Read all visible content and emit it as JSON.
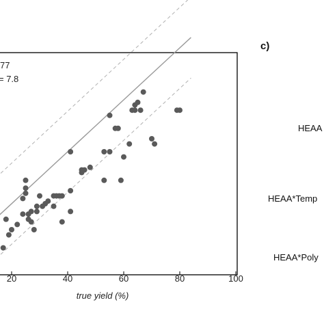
{
  "chart_data": {
    "type": "scatter",
    "xlabel": "true yield (%)",
    "x_ticks": [
      "20",
      "40",
      "60",
      "80",
      "100"
    ],
    "xlim": [
      0,
      100
    ],
    "ylim": [
      0,
      100
    ],
    "stats": [
      "77",
      "= 7.8"
    ],
    "colors": {
      "points": "#5a5a5a",
      "fit": "#9a9a9a",
      "band": "#b0b0b0",
      "frame": "#000000"
    },
    "fit_line": {
      "x": [
        0,
        84
      ],
      "y": [
        0,
        84
      ]
    },
    "band_offset": 15.6,
    "points": [
      {
        "x": 2,
        "y": 6
      },
      {
        "x": 3,
        "y": 14
      },
      {
        "x": 6,
        "y": 22
      },
      {
        "x": 7,
        "y": 26
      },
      {
        "x": 10,
        "y": 17
      },
      {
        "x": 10,
        "y": 19
      },
      {
        "x": 14,
        "y": 12
      },
      {
        "x": 17,
        "y": 3
      },
      {
        "x": 18,
        "y": 14
      },
      {
        "x": 19,
        "y": 8
      },
      {
        "x": 20,
        "y": 10
      },
      {
        "x": 22,
        "y": 12
      },
      {
        "x": 24,
        "y": 16
      },
      {
        "x": 24,
        "y": 22
      },
      {
        "x": 25,
        "y": 24
      },
      {
        "x": 25,
        "y": 29
      },
      {
        "x": 25,
        "y": 26
      },
      {
        "x": 26,
        "y": 16
      },
      {
        "x": 26,
        "y": 14
      },
      {
        "x": 27,
        "y": 17
      },
      {
        "x": 27,
        "y": 13
      },
      {
        "x": 28,
        "y": 10
      },
      {
        "x": 29,
        "y": 19
      },
      {
        "x": 29,
        "y": 17
      },
      {
        "x": 30,
        "y": 23
      },
      {
        "x": 31,
        "y": 19
      },
      {
        "x": 32,
        "y": 20
      },
      {
        "x": 33,
        "y": 21
      },
      {
        "x": 35,
        "y": 19
      },
      {
        "x": 35,
        "y": 23
      },
      {
        "x": 36,
        "y": 23
      },
      {
        "x": 37,
        "y": 23
      },
      {
        "x": 38,
        "y": 13
      },
      {
        "x": 38,
        "y": 23
      },
      {
        "x": 41,
        "y": 17
      },
      {
        "x": 41,
        "y": 25
      },
      {
        "x": 41,
        "y": 40
      },
      {
        "x": 45,
        "y": 32
      },
      {
        "x": 45,
        "y": 33
      },
      {
        "x": 46,
        "y": 33
      },
      {
        "x": 48,
        "y": 34
      },
      {
        "x": 53,
        "y": 40
      },
      {
        "x": 53,
        "y": 29
      },
      {
        "x": 55,
        "y": 40
      },
      {
        "x": 55,
        "y": 54
      },
      {
        "x": 57,
        "y": 49
      },
      {
        "x": 58,
        "y": 49
      },
      {
        "x": 59,
        "y": 29
      },
      {
        "x": 60,
        "y": 38
      },
      {
        "x": 62,
        "y": 43
      },
      {
        "x": 63,
        "y": 56
      },
      {
        "x": 64,
        "y": 56
      },
      {
        "x": 64,
        "y": 58
      },
      {
        "x": 65,
        "y": 59
      },
      {
        "x": 66,
        "y": 56
      },
      {
        "x": 67,
        "y": 63
      },
      {
        "x": 70,
        "y": 45
      },
      {
        "x": 71,
        "y": 43
      },
      {
        "x": 79,
        "y": 56
      },
      {
        "x": 80,
        "y": 56
      }
    ]
  },
  "panel_c": {
    "label": "c)",
    "terms": [
      "HEAA",
      "HEAA*Temp",
      "HEAA*Poly"
    ]
  }
}
